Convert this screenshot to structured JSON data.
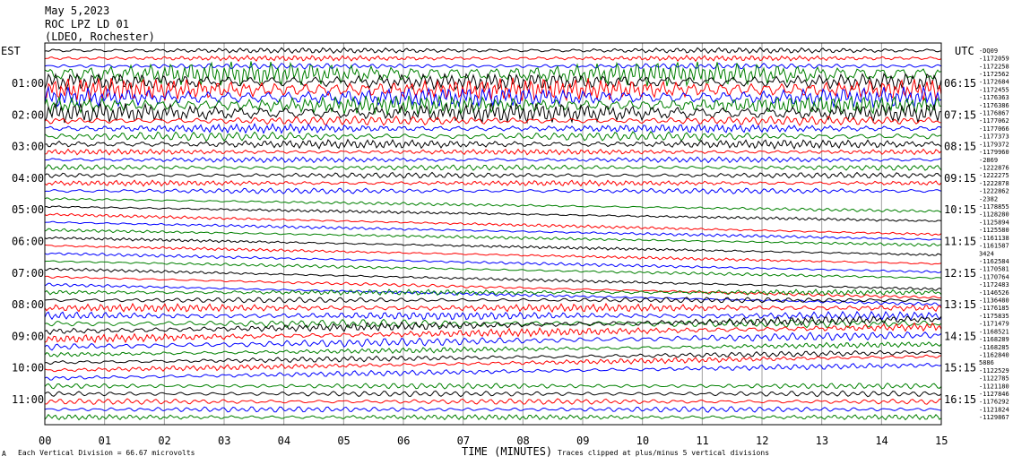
{
  "header": {
    "line1": "May 5,2023",
    "line2": "ROC LPZ LD 01",
    "line3": "(LDEO, Rochester)"
  },
  "chart_data": {
    "type": "line",
    "left_axis_title": "EST",
    "right_axis_title": "UTC",
    "xlabel": "TIME (MINUTES)",
    "x_ticks": [
      "00",
      "01",
      "02",
      "03",
      "04",
      "05",
      "06",
      "07",
      "08",
      "09",
      "10",
      "11",
      "12",
      "13",
      "14",
      "15"
    ],
    "xlim": [
      0,
      15
    ],
    "left_hour_labels": [
      "01:00",
      "02:00",
      "03:00",
      "04:00",
      "05:00",
      "06:00",
      "07:00",
      "08:00",
      "09:00",
      "10:00",
      "11:00"
    ],
    "right_hour_labels": [
      "06:15",
      "07:15",
      "08:15",
      "09:15",
      "10:15",
      "11:15",
      "12:15",
      "13:15",
      "14:15",
      "15:15",
      "16:15"
    ],
    "trace_values": [
      "-DQ09",
      "-1172059",
      "-1172258",
      "-1172562",
      "-1172684",
      "-1172455",
      "-1176363",
      "-1176386",
      "-1176867",
      "-1177062",
      "-1177066",
      "-1177373",
      "-1179372",
      "-1179960",
      "-2869",
      "-1222876",
      "-1222275",
      "-1222878",
      "-1222862",
      "-2382",
      "-1178855",
      "-1128280",
      "-1125894",
      "-1125580",
      "-1161138",
      "-1161587",
      "3424",
      "-1162584",
      "-1170581",
      "-1170764",
      "-1172483",
      "-1146526",
      "-1136480",
      "-1176185",
      "-1175835",
      "-1171479",
      "-1168521",
      "-1168289",
      "-1168285",
      "-1162840",
      "5886",
      "-1122529",
      "-1122785",
      "-1121180",
      "-1127846",
      "-1176292",
      "-1121824",
      "-1129867"
    ],
    "trace_colors": [
      "#000000",
      "#ff0000",
      "#0000ff",
      "#008000"
    ],
    "grid": true,
    "footer_left": "Each Vertical Division =   66.67 microvolts",
    "footer_right": "Traces clipped at plus/minus 5 vertical divisions"
  }
}
